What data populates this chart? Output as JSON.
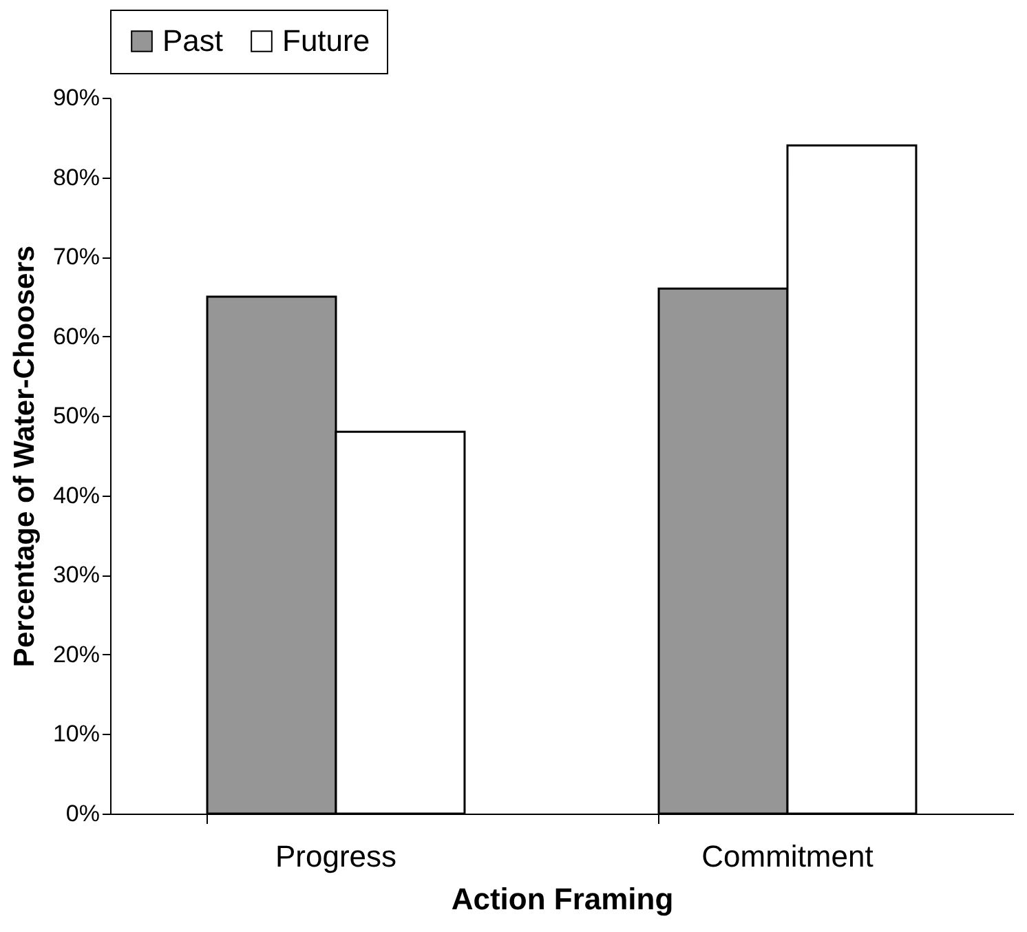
{
  "chart_data": {
    "type": "bar",
    "xlabel": "Action Framing",
    "ylabel": "Percentage of Water-Choosers",
    "categories": [
      "Progress",
      "Commitment"
    ],
    "series": [
      {
        "name": "Past",
        "color": "#969696",
        "values": [
          65,
          66
        ]
      },
      {
        "name": "Future",
        "color": "#ffffff",
        "values": [
          48,
          84
        ]
      }
    ],
    "ylim": [
      0,
      90
    ],
    "yticks": [
      {
        "value": 0,
        "label": "0%"
      },
      {
        "value": 10,
        "label": "10%"
      },
      {
        "value": 20,
        "label": "20%"
      },
      {
        "value": 30,
        "label": "30%"
      },
      {
        "value": 40,
        "label": "40%"
      },
      {
        "value": 50,
        "label": "50%"
      },
      {
        "value": 60,
        "label": "60%"
      },
      {
        "value": 70,
        "label": "70%"
      },
      {
        "value": 80,
        "label": "80%"
      },
      {
        "value": 90,
        "label": "90%"
      }
    ],
    "grid": false,
    "legend": "top"
  }
}
